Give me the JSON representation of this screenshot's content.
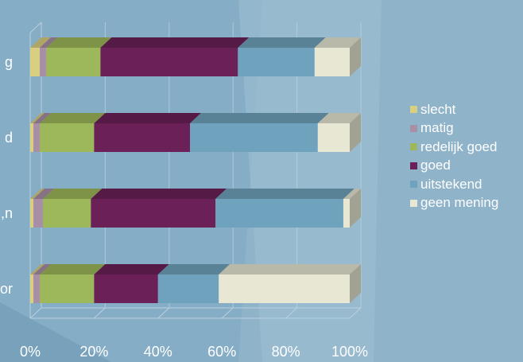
{
  "chart_data": {
    "type": "bar",
    "orientation": "horizontal",
    "stacked": "100%",
    "categories": [
      "…g",
      "…d",
      "…n,",
      "…or"
    ],
    "category_labels_visible": [
      "g",
      "d",
      "n,",
      "or"
    ],
    "series": [
      {
        "name": "slecht",
        "color": "#d8cf80",
        "values": [
          3,
          1,
          1,
          1
        ]
      },
      {
        "name": "matig",
        "color": "#a98fa6",
        "values": [
          2,
          2,
          3,
          2
        ]
      },
      {
        "name": "redelijk goed",
        "color": "#9db85a",
        "values": [
          17,
          17,
          15,
          17
        ]
      },
      {
        "name": "goed",
        "color": "#6b2157",
        "values": [
          43,
          30,
          39,
          20
        ]
      },
      {
        "name": "uitstekend",
        "color": "#6fa3bd",
        "values": [
          24,
          40,
          40,
          19
        ]
      },
      {
        "name": "geen mening",
        "color": "#e7e7d3",
        "values": [
          11,
          10,
          2,
          41
        ]
      }
    ],
    "xlim": [
      0,
      100
    ],
    "xticks": [
      "0%",
      "20%",
      "40%",
      "60%",
      "80%",
      "100%"
    ],
    "grid": true,
    "legend_position": "right"
  },
  "colors": {
    "background": "#8fb3c9",
    "text": "#ffffff",
    "gridline": "#b9d1de"
  }
}
